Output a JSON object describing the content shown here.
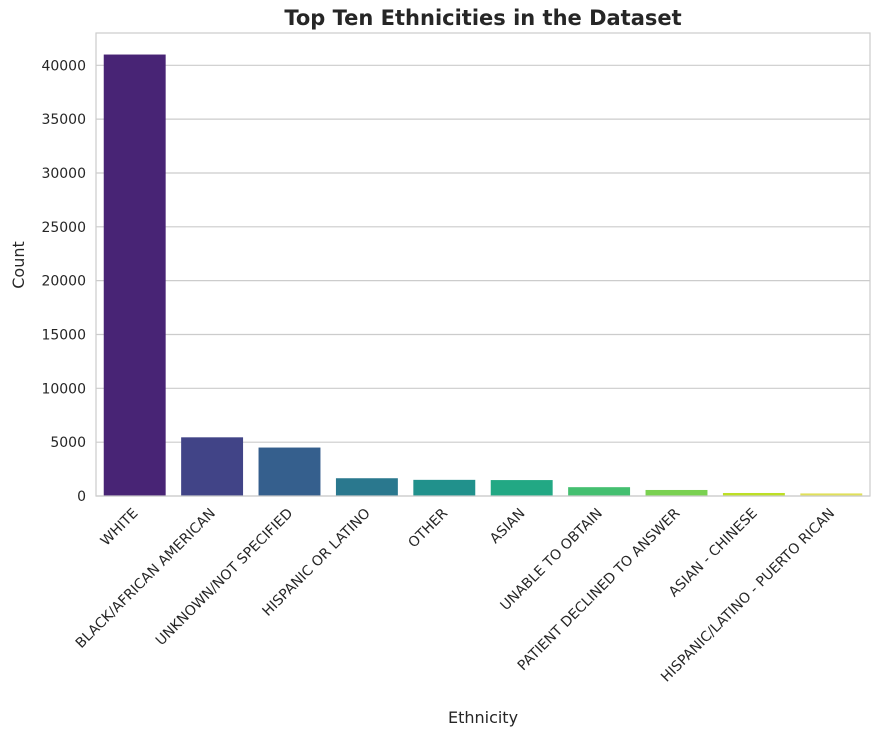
{
  "chart_data": {
    "type": "bar",
    "title": "Top Ten Ethnicities in the Dataset",
    "xlabel": "Ethnicity",
    "ylabel": "Count",
    "categories": [
      "WHITE",
      "BLACK/AFRICAN AMERICAN",
      "UNKNOWN/NOT SPECIFIED",
      "HISPANIC OR LATINO",
      "OTHER",
      "ASIAN",
      "UNABLE TO OBTAIN",
      "PATIENT DECLINED TO ANSWER",
      "ASIAN - CHINESE",
      "HISPANIC/LATINO - PUERTO RICAN"
    ],
    "values": [
      41000,
      5450,
      4500,
      1650,
      1500,
      1480,
      820,
      560,
      280,
      240
    ],
    "colors": [
      "#482475",
      "#414487",
      "#355f8d",
      "#2a788e",
      "#21918c",
      "#22a884",
      "#44bf70",
      "#7ad151",
      "#bddf26",
      "#e0e05a"
    ],
    "ylim": [
      0,
      43000
    ],
    "yticks": [
      0,
      5000,
      10000,
      15000,
      20000,
      25000,
      30000,
      35000,
      40000
    ],
    "grid": "horizontal",
    "legend": "none"
  }
}
